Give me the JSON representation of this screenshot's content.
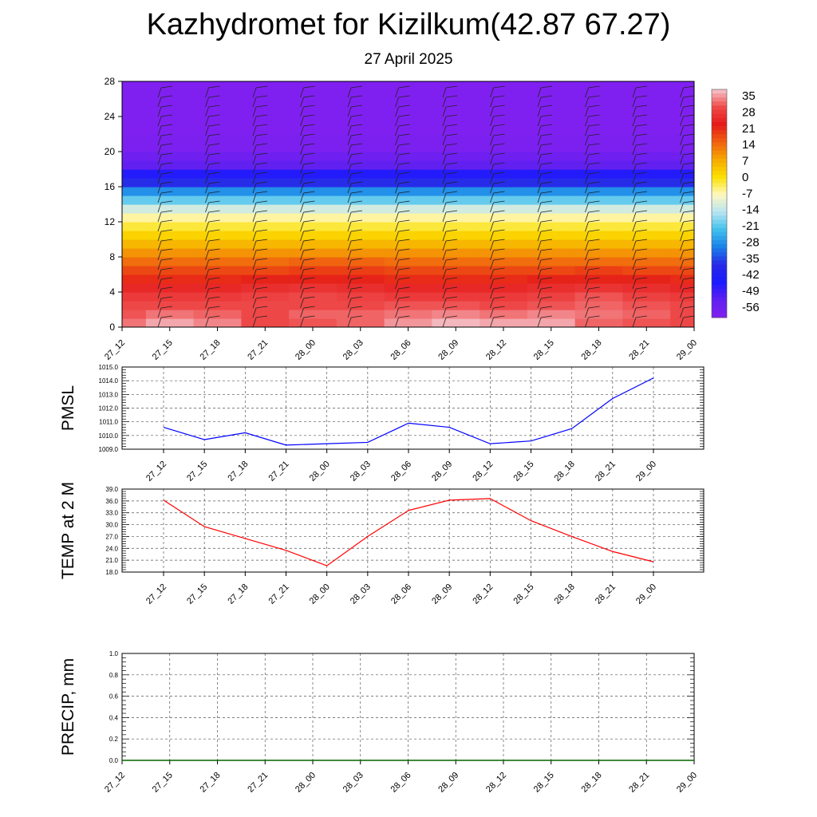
{
  "header": {
    "title": "Kazhydromet for Kizilkum(42.87 67.27)",
    "subtitle": "27 April 2025"
  },
  "chart_data": [
    {
      "type": "heatmap",
      "name": "vertical-section",
      "title": "",
      "xlabel": "",
      "ylabel": "",
      "x": [
        "27_12",
        "27_15",
        "27_18",
        "27_21",
        "28_00",
        "28_03",
        "28_06",
        "28_09",
        "28_12",
        "28_15",
        "28_18",
        "28_21",
        "29_00"
      ],
      "y_ticks": [
        0,
        4,
        8,
        12,
        16,
        20,
        24,
        28
      ],
      "ylim": [
        0,
        28
      ],
      "colorbar_labels": [
        "35",
        "28",
        "21",
        "14",
        "7",
        "0",
        "-7",
        "-14",
        "-21",
        "-28",
        "-35",
        "-42",
        "-49",
        "-56"
      ],
      "colorbar_range": [
        -60,
        38
      ],
      "levels": [
        0,
        1,
        2,
        3,
        4,
        5,
        6,
        7,
        8,
        9,
        10,
        11,
        12,
        13,
        14,
        15,
        16,
        17,
        18,
        19,
        20,
        22,
        24,
        26,
        28
      ],
      "values": [
        [
          33,
          36,
          34,
          30,
          31,
          32,
          35,
          37,
          36,
          36,
          32,
          31,
          30
        ],
        [
          31,
          33,
          32,
          30,
          32,
          32,
          33,
          34,
          33,
          34,
          33,
          32,
          30
        ],
        [
          30,
          30,
          30,
          30,
          30,
          30,
          31,
          31,
          30,
          31,
          32,
          31,
          30
        ],
        [
          28,
          28,
          28,
          29,
          30,
          29,
          28,
          28,
          28,
          29,
          31,
          29,
          28
        ],
        [
          25,
          25,
          25,
          26,
          27,
          26,
          25,
          25,
          25,
          26,
          27,
          26,
          25
        ],
        [
          21,
          21,
          21,
          22,
          22,
          22,
          21,
          21,
          21,
          22,
          22,
          22,
          21
        ],
        [
          18,
          18,
          18,
          18,
          19,
          19,
          18,
          18,
          18,
          18,
          19,
          18,
          18
        ],
        [
          14,
          14,
          14,
          14,
          15,
          15,
          14,
          14,
          14,
          14,
          14,
          14,
          14
        ],
        [
          10,
          10,
          10,
          10,
          10,
          10,
          10,
          10,
          10,
          10,
          10,
          10,
          10
        ],
        [
          6,
          6,
          6,
          6,
          6,
          6,
          6,
          6,
          6,
          6,
          6,
          6,
          6
        ],
        [
          2,
          2,
          2,
          2,
          2,
          2,
          2,
          2,
          2,
          2,
          2,
          2,
          2
        ],
        [
          -2,
          -2,
          -2,
          -2,
          -2,
          -2,
          -2,
          -2,
          -2,
          -2,
          -2,
          -2,
          -2
        ],
        [
          -6,
          -6,
          -6,
          -6,
          -6,
          -6,
          -6,
          -6,
          -6,
          -6,
          -6,
          -6,
          -6
        ],
        [
          -12,
          -12,
          -12,
          -12,
          -12,
          -12,
          -12,
          -12,
          -12,
          -12,
          -12,
          -12,
          -12
        ],
        [
          -20,
          -20,
          -20,
          -20,
          -20,
          -20,
          -20,
          -20,
          -20,
          -20,
          -20,
          -20,
          -20
        ],
        [
          -28,
          -28,
          -28,
          -28,
          -28,
          -28,
          -28,
          -28,
          -28,
          -28,
          -28,
          -28,
          -28
        ],
        [
          -37,
          -37,
          -37,
          -37,
          -37,
          -37,
          -37,
          -37,
          -37,
          -37,
          -37,
          -37,
          -37
        ],
        [
          -46,
          -46,
          -46,
          -46,
          -46,
          -46,
          -46,
          -46,
          -46,
          -46,
          -46,
          -46,
          -46
        ],
        [
          -53,
          -53,
          -53,
          -53,
          -53,
          -53,
          -53,
          -53,
          -53,
          -53,
          -53,
          -53,
          -53
        ],
        [
          -56,
          -56,
          -56,
          -56,
          -56,
          -56,
          -56,
          -56,
          -56,
          -56,
          -56,
          -56,
          -56
        ],
        [
          -59,
          -59,
          -59,
          -59,
          -59,
          -59,
          -59,
          -59,
          -59,
          -59,
          -59,
          -59,
          -59
        ],
        [
          -60,
          -60,
          -60,
          -60,
          -60,
          -60,
          -60,
          -60,
          -60,
          -60,
          -60,
          -60,
          -60
        ],
        [
          -60,
          -60,
          -60,
          -60,
          -60,
          -60,
          -60,
          -60,
          -60,
          -60,
          -60,
          -60,
          -60
        ],
        [
          -60,
          -60,
          -60,
          -60,
          -60,
          -60,
          -60,
          -60,
          -60,
          -60,
          -60,
          -60,
          -60
        ],
        [
          -60,
          -60,
          -60,
          -60,
          -60,
          -60,
          -60,
          -60,
          -60,
          -60,
          -60,
          -60,
          -60
        ]
      ],
      "colormap": [
        "#f5c8d0",
        "#ef4a4a",
        "#e51a1a",
        "#f06010",
        "#f6a800",
        "#fbe000",
        "#fff8c0",
        "#b8e4f2",
        "#40c0ec",
        "#1a80e8",
        "#2828e8",
        "#1a1aff",
        "#6020f0",
        "#8020f0"
      ]
    },
    {
      "type": "line",
      "name": "pmsl",
      "ylabel": "PMSL",
      "x": [
        "27_12",
        "27_15",
        "27_18",
        "27_21",
        "28_00",
        "28_03",
        "28_06",
        "28_09",
        "28_12",
        "28_15",
        "28_18",
        "28_21",
        "29_00"
      ],
      "values": [
        1010.6,
        1009.7,
        1010.2,
        1009.3,
        1009.4,
        1009.5,
        1010.9,
        1010.6,
        1009.4,
        1009.6,
        1010.5,
        1012.7,
        1014.2
      ],
      "ylim": [
        1009.0,
        1015.0
      ],
      "y_ticks": [
        "1009.0",
        "1010.0",
        "1011.0",
        "1012.0",
        "1013.0",
        "1014.0",
        "1015.0"
      ],
      "color": "#0000ff",
      "grid": true
    },
    {
      "type": "line",
      "name": "temp2m",
      "ylabel": "TEMP at 2 M",
      "x": [
        "27_12",
        "27_15",
        "27_18",
        "27_21",
        "28_00",
        "28_03",
        "28_06",
        "28_09",
        "28_12",
        "28_15",
        "28_18",
        "28_21",
        "29_00"
      ],
      "values": [
        36.2,
        29.5,
        26.5,
        23.5,
        19.6,
        27.0,
        33.6,
        36.2,
        36.6,
        31.0,
        27.0,
        23.2,
        20.6
      ],
      "ylim": [
        18.0,
        39.0
      ],
      "y_ticks": [
        "18.0",
        "21.0",
        "24.0",
        "27.0",
        "30.0",
        "33.0",
        "36.0",
        "39.0"
      ],
      "color": "#ff0000",
      "grid": true
    },
    {
      "type": "line",
      "name": "precip",
      "ylabel": "PRECIP, mm",
      "x": [
        "27_12",
        "27_15",
        "27_18",
        "27_21",
        "28_00",
        "28_03",
        "28_06",
        "28_09",
        "28_12",
        "28_15",
        "28_18",
        "28_21",
        "29_00"
      ],
      "values": [
        0,
        0,
        0,
        0,
        0,
        0,
        0,
        0,
        0,
        0,
        0,
        0,
        0
      ],
      "ylim": [
        0.0,
        1.0
      ],
      "y_ticks": [
        "0.0",
        "0.2",
        "0.4",
        "0.6",
        "0.8",
        "1.0"
      ],
      "color": "#006400",
      "grid": true
    }
  ]
}
